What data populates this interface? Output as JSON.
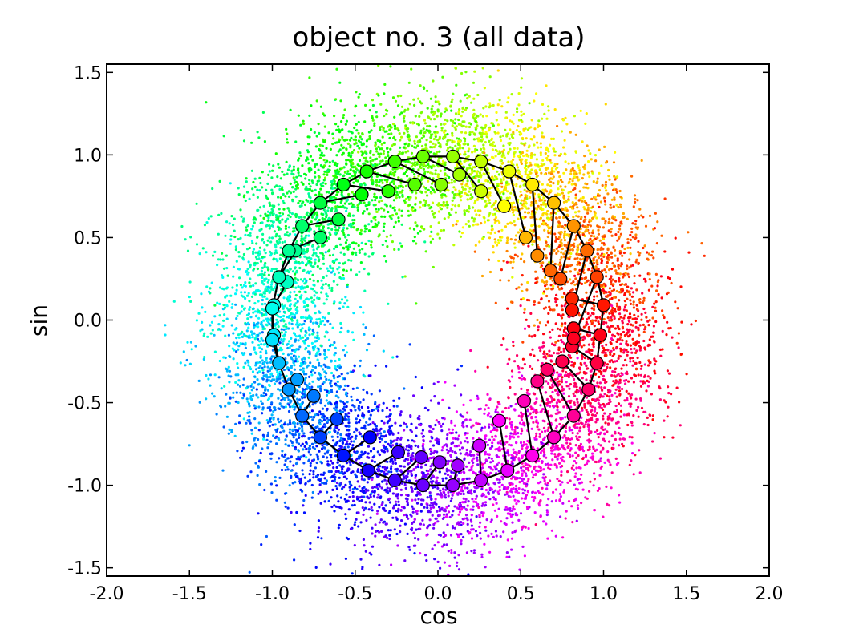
{
  "chart_data": {
    "type": "scatter",
    "title": "object no. 3 (all data)",
    "xlabel": "cos",
    "ylabel": "sin",
    "xlim": [
      -2.0,
      2.0
    ],
    "ylim": [
      -1.55,
      1.55
    ],
    "xticks": [
      "-2.0",
      "-1.5",
      "-1.0",
      "-0.5",
      "0.0",
      "0.5",
      "1.0",
      "1.5",
      "2.0"
    ],
    "xtick_values": [
      -2.0,
      -1.5,
      -1.0,
      -0.5,
      0.0,
      0.5,
      1.0,
      1.5,
      2.0
    ],
    "yticks": [
      "-1.5",
      "-1.0",
      "-0.5",
      "0.0",
      "0.5",
      "1.0",
      "1.5"
    ],
    "ytick_values": [
      -1.5,
      -1.0,
      -0.5,
      0.0,
      0.5,
      1.0,
      1.5
    ],
    "grid": false,
    "colormap": "hsv (hue by angle)",
    "series": [
      {
        "kind": "noisy scatter (all data)",
        "point_count": 9000,
        "noise_sd": 0.22,
        "marker_color": "hue by angle"
      },
      {
        "kind": "outer ring markers",
        "marker_color": "hue by angle",
        "edge_color": "#000000",
        "connected_by_line": true,
        "points": [
          [
            1.0,
            0.09
          ],
          [
            0.98,
            -0.09
          ],
          [
            0.96,
            -0.26
          ],
          [
            0.91,
            -0.42
          ],
          [
            0.82,
            -0.58
          ],
          [
            0.7,
            -0.71
          ],
          [
            0.57,
            -0.82
          ],
          [
            0.42,
            -0.91
          ],
          [
            0.26,
            -0.97
          ],
          [
            0.09,
            -1.0
          ],
          [
            -0.09,
            -1.0
          ],
          [
            -0.26,
            -0.97
          ],
          [
            -0.42,
            -0.91
          ],
          [
            -0.57,
            -0.82
          ],
          [
            -0.71,
            -0.71
          ],
          [
            -0.82,
            -0.58
          ],
          [
            -0.9,
            -0.42
          ],
          [
            -0.96,
            -0.26
          ],
          [
            -1.0,
            -0.12
          ],
          [
            -1.0,
            0.07
          ],
          [
            -0.96,
            0.26
          ],
          [
            -0.9,
            0.42
          ],
          [
            -0.82,
            0.57
          ],
          [
            -0.71,
            0.71
          ],
          [
            -0.57,
            0.82
          ],
          [
            -0.43,
            0.9
          ],
          [
            -0.26,
            0.96
          ],
          [
            -0.09,
            0.99
          ],
          [
            0.09,
            0.99
          ],
          [
            0.26,
            0.96
          ],
          [
            0.43,
            0.9
          ],
          [
            0.57,
            0.82
          ],
          [
            0.7,
            0.71
          ],
          [
            0.82,
            0.57
          ],
          [
            0.9,
            0.42
          ],
          [
            0.96,
            0.26
          ]
        ]
      },
      {
        "kind": "inner markers",
        "marker_color": "hue by angle",
        "edge_color": "#000000",
        "note": "each joined to an outer ring marker",
        "points": [
          [
            0.81,
            0.13
          ],
          [
            0.82,
            -0.05
          ],
          [
            0.81,
            -0.16
          ],
          [
            0.75,
            -0.25
          ],
          [
            0.66,
            -0.3
          ],
          [
            0.6,
            -0.37
          ],
          [
            0.52,
            -0.49
          ],
          [
            0.37,
            -0.61
          ],
          [
            0.25,
            -0.76
          ],
          [
            0.12,
            -0.88
          ],
          [
            0.01,
            -0.86
          ],
          [
            -0.1,
            -0.83
          ],
          [
            -0.24,
            -0.8
          ],
          [
            -0.41,
            -0.71
          ],
          [
            -0.61,
            -0.6
          ],
          [
            -0.75,
            -0.46
          ],
          [
            -0.85,
            -0.36
          ],
          [
            -0.99,
            -0.09
          ],
          [
            -0.99,
            0.09
          ],
          [
            -0.91,
            0.23
          ],
          [
            -0.86,
            0.42
          ],
          [
            -0.71,
            0.5
          ],
          [
            -0.6,
            0.61
          ],
          [
            -0.46,
            0.76
          ],
          [
            -0.3,
            0.78
          ],
          [
            -0.14,
            0.82
          ],
          [
            0.02,
            0.82
          ],
          [
            0.13,
            0.88
          ],
          [
            0.26,
            0.78
          ],
          [
            0.4,
            0.69
          ],
          [
            0.53,
            0.5
          ],
          [
            0.6,
            0.39
          ],
          [
            0.68,
            0.3
          ],
          [
            0.74,
            0.25
          ],
          [
            0.81,
            0.06
          ],
          [
            0.82,
            -0.11
          ]
        ]
      }
    ]
  }
}
